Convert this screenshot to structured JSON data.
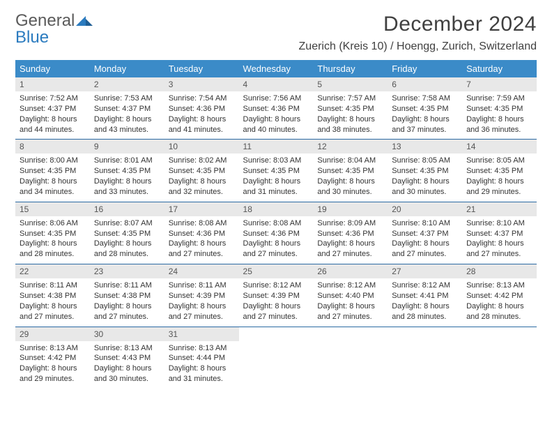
{
  "logo": {
    "general": "General",
    "blue": "Blue"
  },
  "title": "December 2024",
  "location": "Zuerich (Kreis 10) / Hoengg, Zurich, Switzerland",
  "columns": [
    "Sunday",
    "Monday",
    "Tuesday",
    "Wednesday",
    "Thursday",
    "Friday",
    "Saturday"
  ],
  "colors": {
    "header_bg": "#3b8bc8",
    "header_fg": "#ffffff",
    "daynum_bg": "#e8e8e8",
    "row_border": "#2b6aa3",
    "logo_gray": "#5a5a5a",
    "logo_blue": "#2b7bbf"
  },
  "weeks": [
    [
      {
        "n": "1",
        "sr": "7:52 AM",
        "ss": "4:37 PM",
        "dl": "8 hours and 44 minutes."
      },
      {
        "n": "2",
        "sr": "7:53 AM",
        "ss": "4:37 PM",
        "dl": "8 hours and 43 minutes."
      },
      {
        "n": "3",
        "sr": "7:54 AM",
        "ss": "4:36 PM",
        "dl": "8 hours and 41 minutes."
      },
      {
        "n": "4",
        "sr": "7:56 AM",
        "ss": "4:36 PM",
        "dl": "8 hours and 40 minutes."
      },
      {
        "n": "5",
        "sr": "7:57 AM",
        "ss": "4:35 PM",
        "dl": "8 hours and 38 minutes."
      },
      {
        "n": "6",
        "sr": "7:58 AM",
        "ss": "4:35 PM",
        "dl": "8 hours and 37 minutes."
      },
      {
        "n": "7",
        "sr": "7:59 AM",
        "ss": "4:35 PM",
        "dl": "8 hours and 36 minutes."
      }
    ],
    [
      {
        "n": "8",
        "sr": "8:00 AM",
        "ss": "4:35 PM",
        "dl": "8 hours and 34 minutes."
      },
      {
        "n": "9",
        "sr": "8:01 AM",
        "ss": "4:35 PM",
        "dl": "8 hours and 33 minutes."
      },
      {
        "n": "10",
        "sr": "8:02 AM",
        "ss": "4:35 PM",
        "dl": "8 hours and 32 minutes."
      },
      {
        "n": "11",
        "sr": "8:03 AM",
        "ss": "4:35 PM",
        "dl": "8 hours and 31 minutes."
      },
      {
        "n": "12",
        "sr": "8:04 AM",
        "ss": "4:35 PM",
        "dl": "8 hours and 30 minutes."
      },
      {
        "n": "13",
        "sr": "8:05 AM",
        "ss": "4:35 PM",
        "dl": "8 hours and 30 minutes."
      },
      {
        "n": "14",
        "sr": "8:05 AM",
        "ss": "4:35 PM",
        "dl": "8 hours and 29 minutes."
      }
    ],
    [
      {
        "n": "15",
        "sr": "8:06 AM",
        "ss": "4:35 PM",
        "dl": "8 hours and 28 minutes."
      },
      {
        "n": "16",
        "sr": "8:07 AM",
        "ss": "4:35 PM",
        "dl": "8 hours and 28 minutes."
      },
      {
        "n": "17",
        "sr": "8:08 AM",
        "ss": "4:36 PM",
        "dl": "8 hours and 27 minutes."
      },
      {
        "n": "18",
        "sr": "8:08 AM",
        "ss": "4:36 PM",
        "dl": "8 hours and 27 minutes."
      },
      {
        "n": "19",
        "sr": "8:09 AM",
        "ss": "4:36 PM",
        "dl": "8 hours and 27 minutes."
      },
      {
        "n": "20",
        "sr": "8:10 AM",
        "ss": "4:37 PM",
        "dl": "8 hours and 27 minutes."
      },
      {
        "n": "21",
        "sr": "8:10 AM",
        "ss": "4:37 PM",
        "dl": "8 hours and 27 minutes."
      }
    ],
    [
      {
        "n": "22",
        "sr": "8:11 AM",
        "ss": "4:38 PM",
        "dl": "8 hours and 27 minutes."
      },
      {
        "n": "23",
        "sr": "8:11 AM",
        "ss": "4:38 PM",
        "dl": "8 hours and 27 minutes."
      },
      {
        "n": "24",
        "sr": "8:11 AM",
        "ss": "4:39 PM",
        "dl": "8 hours and 27 minutes."
      },
      {
        "n": "25",
        "sr": "8:12 AM",
        "ss": "4:39 PM",
        "dl": "8 hours and 27 minutes."
      },
      {
        "n": "26",
        "sr": "8:12 AM",
        "ss": "4:40 PM",
        "dl": "8 hours and 27 minutes."
      },
      {
        "n": "27",
        "sr": "8:12 AM",
        "ss": "4:41 PM",
        "dl": "8 hours and 28 minutes."
      },
      {
        "n": "28",
        "sr": "8:13 AM",
        "ss": "4:42 PM",
        "dl": "8 hours and 28 minutes."
      }
    ],
    [
      {
        "n": "29",
        "sr": "8:13 AM",
        "ss": "4:42 PM",
        "dl": "8 hours and 29 minutes."
      },
      {
        "n": "30",
        "sr": "8:13 AM",
        "ss": "4:43 PM",
        "dl": "8 hours and 30 minutes."
      },
      {
        "n": "31",
        "sr": "8:13 AM",
        "ss": "4:44 PM",
        "dl": "8 hours and 31 minutes."
      },
      null,
      null,
      null,
      null
    ]
  ],
  "labels": {
    "sunrise": "Sunrise: ",
    "sunset": "Sunset: ",
    "daylight": "Daylight: "
  }
}
